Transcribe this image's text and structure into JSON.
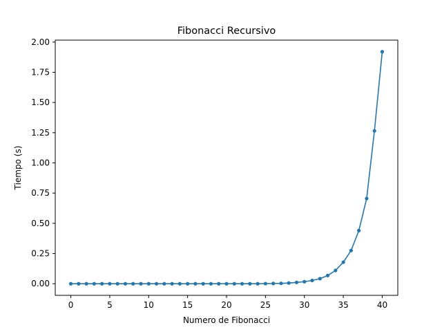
{
  "chart_data": {
    "type": "line",
    "title": "Fibonacci Recursivo",
    "xlabel": "Numero de Fibonacci",
    "ylabel": "Tiempo (s)",
    "xlim": [
      -2,
      42
    ],
    "ylim": [
      -0.096,
      2.016
    ],
    "xticks": [
      0,
      5,
      10,
      15,
      20,
      25,
      30,
      35,
      40
    ],
    "yticks": [
      0.0,
      0.25,
      0.5,
      0.75,
      1.0,
      1.25,
      1.5,
      1.75,
      2.0
    ],
    "ytick_labels": [
      "0.00",
      "0.25",
      "0.50",
      "0.75",
      "1.00",
      "1.25",
      "1.50",
      "1.75",
      "2.00"
    ],
    "grid": false,
    "series": [
      {
        "color": "#1f77b4",
        "marker": "circle",
        "x": [
          0,
          1,
          2,
          3,
          4,
          5,
          6,
          7,
          8,
          9,
          10,
          11,
          12,
          13,
          14,
          15,
          16,
          17,
          18,
          19,
          20,
          21,
          22,
          23,
          24,
          25,
          26,
          27,
          28,
          29,
          30,
          31,
          32,
          33,
          34,
          35,
          36,
          37,
          38,
          39,
          40
        ],
        "y": [
          0,
          0,
          0,
          0,
          0,
          0,
          0,
          0,
          0,
          0,
          0,
          0,
          0,
          0,
          0,
          0,
          0,
          0,
          0,
          0,
          0,
          0,
          0,
          0,
          0,
          0.001,
          0.002,
          0.003,
          0.006,
          0.011,
          0.017,
          0.027,
          0.042,
          0.068,
          0.11,
          0.178,
          0.275,
          0.44,
          0.705,
          1.265,
          1.92
        ]
      }
    ]
  }
}
